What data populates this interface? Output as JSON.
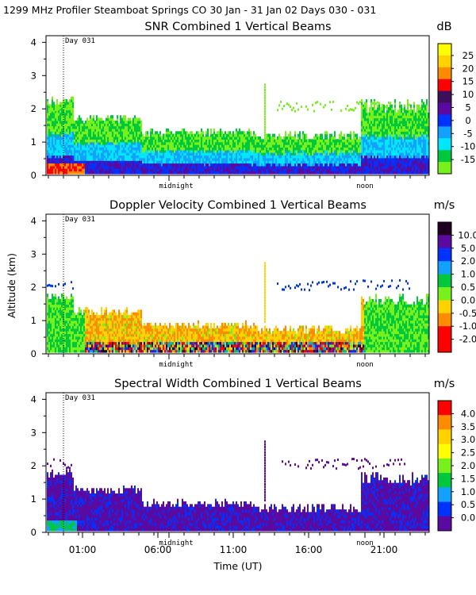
{
  "header": "1299 MHz Profiler  Steamboat Springs CO  30 Jan - 31 Jan 02 Days 030 - 031",
  "xlabel": "Time (UT)",
  "ylabel": "Altitude (km)",
  "time_ticks": [
    "01:00",
    "06:00",
    "11:00",
    "16:00",
    "21:00"
  ],
  "day_label": "Day 031",
  "midnight_label": "midnight",
  "noon_label": "noon",
  "chart_data": [
    {
      "type": "heatmap",
      "title": "SNR Combined 1 Vertical Beams",
      "unit": "dB",
      "ylim": [
        0,
        4.2
      ],
      "yticks": [
        "0",
        "1",
        "2",
        "3",
        "4"
      ],
      "colorbar_labels": [
        "25",
        "20",
        "15",
        "10",
        "5",
        "0",
        "-5",
        "-10",
        "-15"
      ],
      "colors": [
        "#ffff00",
        "#ffd200",
        "#ff8c00",
        "#ff0000",
        "#3c0f5a",
        "#5a0aa0",
        "#0032ff",
        "#14a0ff",
        "#00e6ff",
        "#00c83c",
        "#78f01e"
      ]
    },
    {
      "type": "heatmap",
      "title": "Doppler Velocity Combined 1 Vertical Beams",
      "unit": "m/s",
      "ylim": [
        0,
        4.2
      ],
      "yticks": [
        "0",
        "1",
        "2",
        "3",
        "4"
      ],
      "colorbar_labels": [
        "10.0",
        "5.0",
        "2.0",
        "1.0",
        "0.5",
        "0.0",
        "-0.5",
        "-1.0",
        "-2.0"
      ],
      "colors": [
        "#200020",
        "#5a0aa0",
        "#0032ff",
        "#14a0ff",
        "#00c83c",
        "#78f01e",
        "#ffd200",
        "#ff8c00",
        "#ff0000",
        "#ff0000"
      ]
    },
    {
      "type": "heatmap",
      "title": "Spectral Width Combined 1 Vertical Beams",
      "unit": "m/s",
      "ylim": [
        0,
        4.2
      ],
      "yticks": [
        "0",
        "1",
        "2",
        "3",
        "4"
      ],
      "colorbar_labels": [
        "4.0",
        "3.5",
        "3.0",
        "2.5",
        "2.0",
        "1.5",
        "1.0",
        "0.5",
        "0.0"
      ],
      "colors": [
        "#ff0000",
        "#ff8c00",
        "#ffd200",
        "#ffff00",
        "#78f01e",
        "#00c83c",
        "#14a0ff",
        "#0032ff",
        "#5a0aa0"
      ]
    }
  ]
}
